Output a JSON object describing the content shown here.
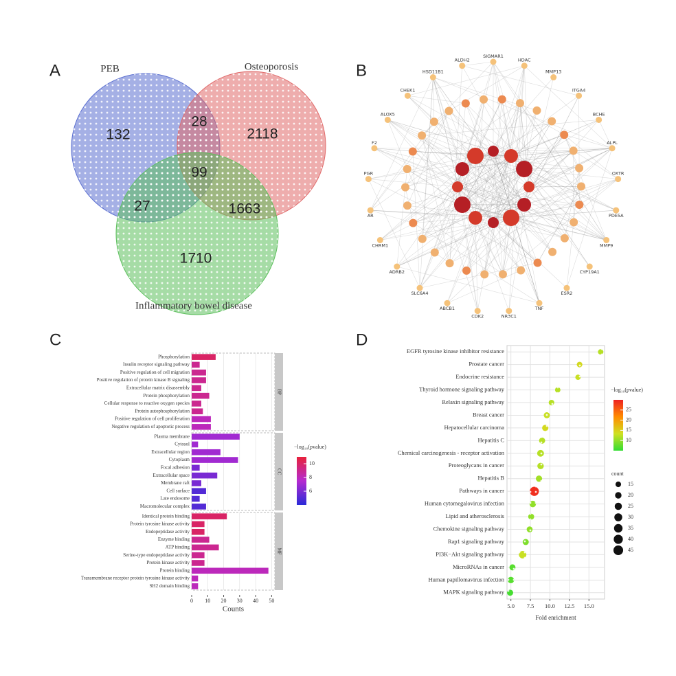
{
  "panels": {
    "a": "A",
    "b": "B",
    "c": "C",
    "d": "D"
  },
  "venn": {
    "sets": [
      {
        "name": "PEB",
        "color": "#5b6fd0"
      },
      {
        "name": "Osteoporosis",
        "color": "#e06a6a"
      },
      {
        "name": "Inflammatory bowel disease",
        "color": "#5cbf5c"
      }
    ],
    "counts": [
      132,
      28,
      2118,
      99,
      27,
      1663,
      1710
    ]
  },
  "network": {
    "outer_labels": [
      "SIGMAR1",
      "HDAC",
      "MMP13",
      "ITGA4",
      "BCHE",
      "ALPL",
      "OXTR",
      "PDE5A",
      "MMP9",
      "CYP19A1",
      "ESR2",
      "TNF",
      "NR3C1",
      "CDK2",
      "ABCB1",
      "SLC6A4",
      "ADRB2",
      "CHRM1",
      "AR",
      "PGR",
      "F2",
      "ALOX5",
      "CHEK1",
      "HSD11B1",
      "ALDH2"
    ]
  },
  "chart_data": [
    {
      "type": "bar",
      "xlabel": "Counts",
      "xlim": [
        0,
        52
      ],
      "xticks": [
        0,
        10,
        20,
        30,
        40,
        50
      ],
      "grid": true,
      "groups": [
        {
          "name": "BP",
          "categories": [
            "Phosphorylation",
            "Insulin receptor signaling pathway",
            "Positive regulation of cell migration",
            "Positive regulation of protein kinase B signaling",
            "Extracellular matrix disassembly",
            "Protein phosphorylation",
            "Cellular response to reactive oxygen species",
            "Protein autophosphorylation",
            "Positive regulation of cell proliferation",
            "Negative regulation of apoptotic process"
          ],
          "values": [
            15,
            5,
            9,
            9,
            6,
            11,
            6,
            7,
            12,
            12
          ],
          "neglog10p": [
            10,
            9,
            9,
            9,
            9,
            9,
            9,
            9,
            8,
            8
          ]
        },
        {
          "name": "CC",
          "categories": [
            "Plasma membrane",
            "Cytosol",
            "Extracellular region",
            "Cytoplasm",
            "Focal adhesion",
            "Extracellular space",
            "Membrane raft",
            "Cell surface",
            "Late endosome",
            "Macromolecular complex"
          ],
          "values": [
            30,
            4,
            18,
            29,
            5,
            16,
            6,
            9,
            5,
            9
          ],
          "neglog10p": [
            7,
            7,
            7,
            7,
            6,
            6,
            6,
            5,
            5,
            5
          ]
        },
        {
          "name": "MF",
          "categories": [
            "Identical protein binding",
            "Protein tyrosine kinase activity",
            "Endopeptidase activity",
            "Enzyme binding",
            "ATP binding",
            "Serine-type endopeptidase activity",
            "Protein kinase activity",
            "Protein binding",
            "Transmembrane receptor protein tyrosine kinase activity",
            "SH2 domain binding"
          ],
          "values": [
            22,
            8,
            8,
            11,
            17,
            8,
            8,
            48,
            4,
            4
          ],
          "neglog10p": [
            10,
            10,
            10,
            9,
            9,
            9,
            9,
            8,
            8,
            8
          ]
        }
      ],
      "color_legend": {
        "title": "−log₁₀(pvalue)",
        "lim": [
          4,
          11
        ],
        "ticks": [
          10,
          8,
          6
        ],
        "colors": [
          "#2a2ad8",
          "#b52ad0",
          "#e8223a"
        ]
      }
    },
    {
      "type": "scatter",
      "xlabel": "Fold enrichment",
      "xlim": [
        4.5,
        17
      ],
      "xticks": [
        {
          "value": 5,
          "label": "5.0"
        },
        7.5,
        {
          "value": 10,
          "label": "10.0"
        },
        12.5,
        {
          "value": 15,
          "label": "15.0"
        }
      ],
      "grid": true,
      "categories": [
        "EGFR tyrosine kinase inhibitor resistance",
        "Prostate cancer",
        "Endocrine resistance",
        "Thyroid hormone signaling pathway",
        "Relaxin signaling pathway",
        "Breast cancer",
        "Hepatocellular carcinoma",
        "Hepatitis C",
        "Chemical carcinogenesis - receptor activation",
        "Proteoglycans in cancer",
        "Hepatitis B",
        "Pathways in cancer",
        "Human cytomegalovirus infection",
        "Lipid and atherosclerosis",
        "Chemokine signaling pathway",
        "Rap1 signaling pathway",
        "PI3K−Akt signaling pathway",
        "MicroRNAs in cancer",
        "Human papillomavirus infection",
        "MAPK signaling pathway"
      ],
      "x": [
        16.5,
        13.8,
        13.6,
        11.0,
        10.2,
        9.6,
        9.4,
        9.0,
        8.8,
        8.8,
        8.6,
        8.0,
        7.8,
        7.6,
        7.4,
        6.9,
        6.5,
        5.2,
        5.0,
        4.9
      ],
      "counts": [
        14,
        15,
        14,
        14,
        15,
        18,
        19,
        18,
        22,
        20,
        19,
        40,
        20,
        17,
        17,
        18,
        27,
        18,
        20,
        18
      ],
      "neglog10p": [
        12,
        14,
        13,
        12,
        12,
        13,
        14,
        12,
        12,
        12,
        11,
        29,
        10,
        10,
        10,
        9,
        13,
        7,
        7,
        6
      ],
      "color_legend": {
        "title": "−log₁₀(pvalue)",
        "lim": [
          5,
          30
        ],
        "ticks": [
          25,
          20,
          15,
          10
        ],
        "colors": [
          "#33dd33",
          "#cfe022",
          "#ff8c00",
          "#ee2222"
        ]
      },
      "size_legend": {
        "title": "count",
        "ticks": [
          15,
          20,
          25,
          30,
          35,
          40,
          45
        ]
      }
    }
  ]
}
